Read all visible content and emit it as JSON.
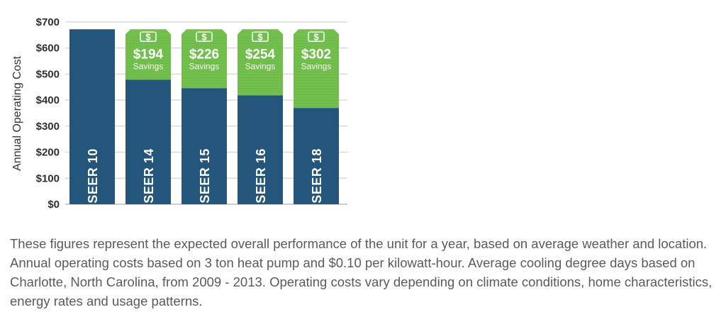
{
  "chart_data": {
    "type": "bar",
    "ylabel": "Annual Operating Cost",
    "ylim": [
      0,
      700
    ],
    "yticks": [
      "$0",
      "$100",
      "$200",
      "$300",
      "$400",
      "$500",
      "$600",
      "$700"
    ],
    "grid": true,
    "categories": [
      "SEER 10",
      "SEER 14",
      "SEER 15",
      "SEER 16",
      "SEER 18"
    ],
    "values": [
      672,
      478,
      446,
      418,
      370
    ],
    "savings": [
      null,
      {
        "value": 194,
        "text": "$194",
        "label": "Savings",
        "icon": "dollar-bill-icon"
      },
      {
        "value": 226,
        "text": "$226",
        "label": "Savings",
        "icon": "dollar-bill-icon"
      },
      {
        "value": 254,
        "text": "$254",
        "label": "Savings",
        "icon": "dollar-bill-icon"
      },
      {
        "value": 302,
        "text": "$302",
        "label": "Savings",
        "icon": "dollar-bill-icon"
      }
    ],
    "colors": {
      "cost": "#24557a",
      "savings": "#72bf4d",
      "savings_dark": "#5aa83a",
      "grid": "#c8c8c8"
    }
  },
  "caption": "These figures represent the expected overall performance of the unit for a year, based on average weather and location.  Annual operating costs based on 3 ton heat pump and $0.10 per kilowatt-hour. Average cooling degree days based on Charlotte, North Carolina, from 2009 - 2013. Operating costs vary depending on climate conditions, home characteristics, energy rates and usage patterns."
}
